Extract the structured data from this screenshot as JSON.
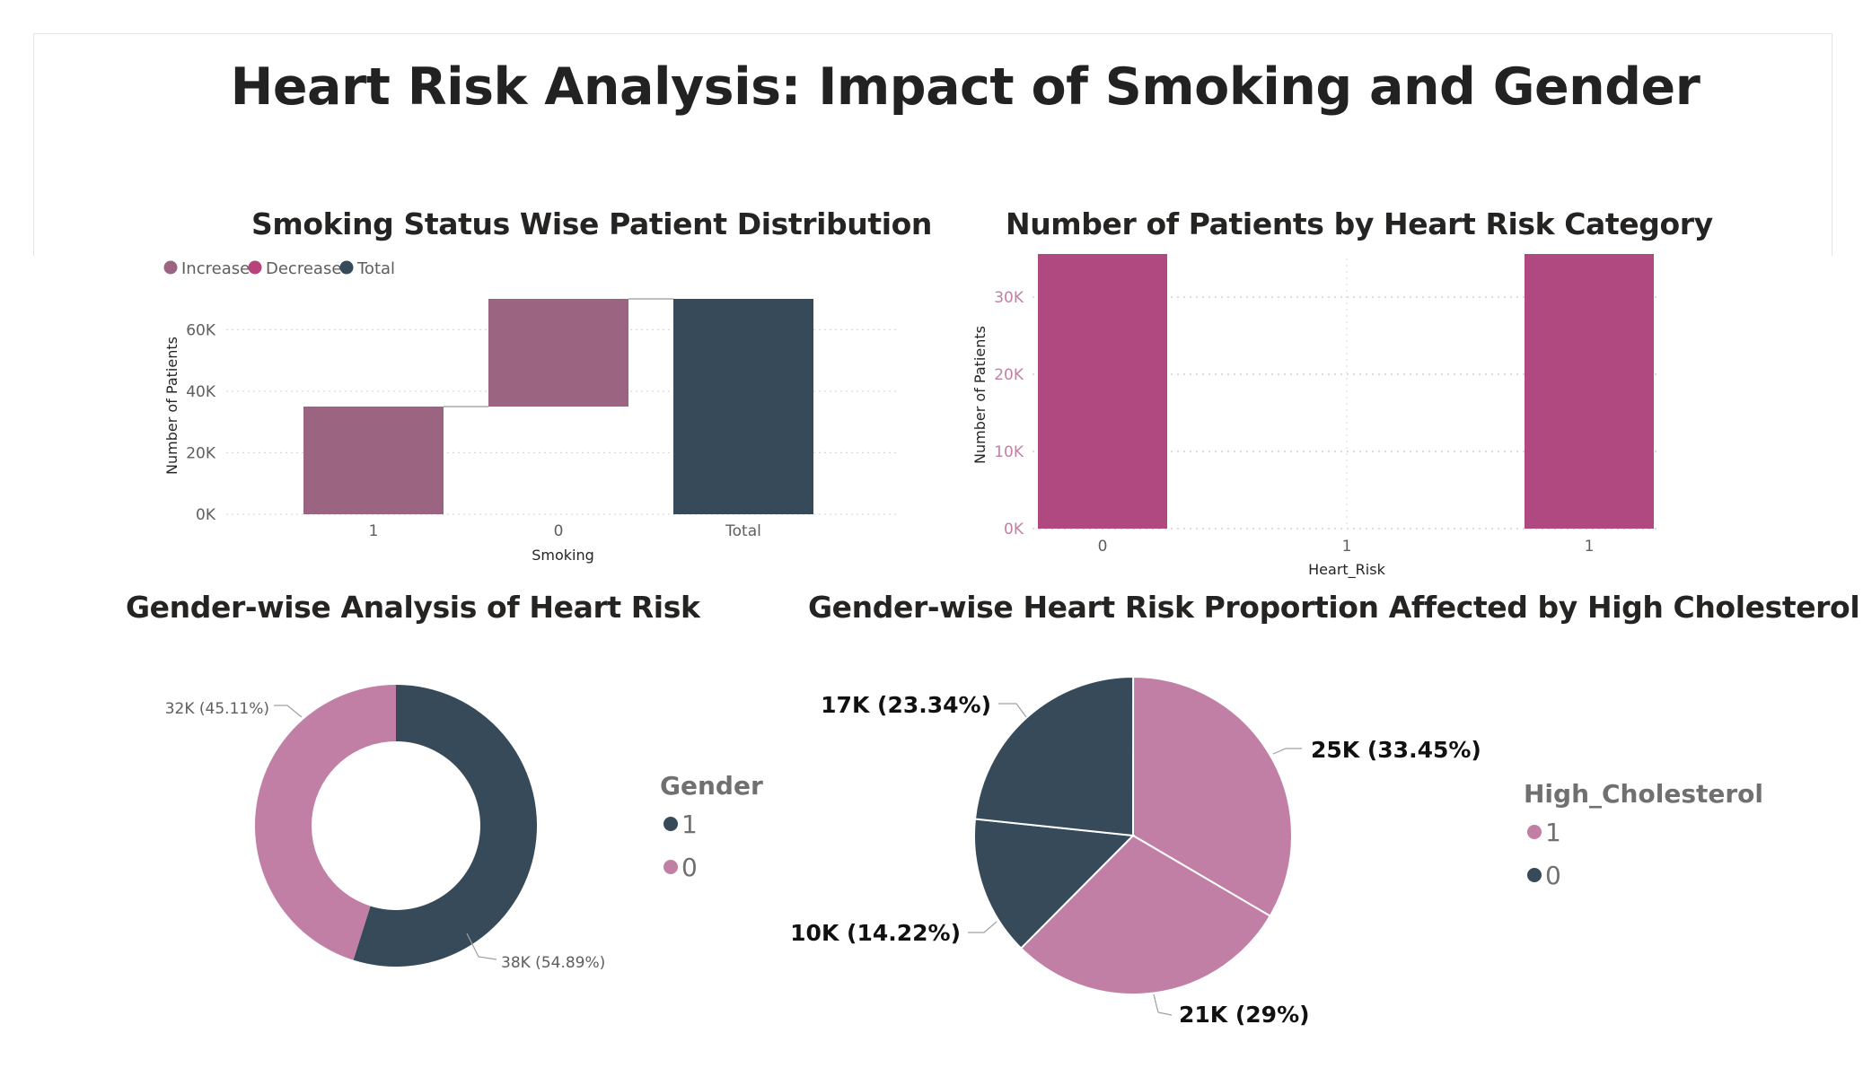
{
  "page": {
    "title": "Heart Risk Analysis: Impact of Smoking and Gender"
  },
  "colors": {
    "increase": "#9b6480",
    "decrease": "#b6437a",
    "total": "#364a59",
    "pink": "#c27fa5",
    "dark": "#364a59",
    "bar": "#b0497f"
  },
  "chart_data": [
    {
      "type": "bar",
      "subtype": "waterfall",
      "title": "Smoking Status Wise Patient Distribution",
      "xlabel": "Smoking",
      "ylabel": "Number of Patients",
      "categories": [
        "1",
        "0",
        "Total"
      ],
      "values": [
        35000,
        35000,
        70000
      ],
      "bar_kind": [
        "Increase",
        "Increase",
        "Total"
      ],
      "legend": [
        "Increase",
        "Decrease",
        "Total"
      ],
      "yticks": [
        "0K",
        "20K",
        "40K",
        "60K"
      ],
      "ylim": [
        0,
        70000
      ],
      "grid": true
    },
    {
      "type": "bar",
      "title": "Number of Patients by Heart Risk Category",
      "xlabel": "Heart_Risk",
      "ylabel": "Number of Patients",
      "categories": [
        "0",
        "1",
        "1"
      ],
      "values": [
        35000,
        0,
        35000
      ],
      "yticks": [
        "0K",
        "10K",
        "20K",
        "30K"
      ],
      "ylim": [
        0,
        35000
      ],
      "grid": true
    },
    {
      "type": "pie",
      "variant": "donut",
      "title": "Gender-wise Analysis of Heart Risk",
      "legend_title": "Gender",
      "slices": [
        {
          "name": "1",
          "value": 38000,
          "percent": 54.89,
          "label": "38K (54.89%)"
        },
        {
          "name": "0",
          "value": 32000,
          "percent": 45.11,
          "label": "32K (45.11%)"
        }
      ]
    },
    {
      "type": "pie",
      "title": "Gender-wise Heart Risk Proportion Affected by High Cholesterol",
      "legend_title": "High_Cholesterol",
      "legend_items": [
        "1",
        "0"
      ],
      "slices": [
        {
          "group": "1",
          "value": 25000,
          "percent": 33.45,
          "label": "25K (33.45%)"
        },
        {
          "group": "1",
          "value": 21000,
          "percent": 29,
          "label": "21K (29%)"
        },
        {
          "group": "0",
          "value": 10000,
          "percent": 14.22,
          "label": "10K (14.22%)"
        },
        {
          "group": "0",
          "value": 17000,
          "percent": 23.34,
          "label": "17K (23.34%)"
        }
      ]
    }
  ]
}
